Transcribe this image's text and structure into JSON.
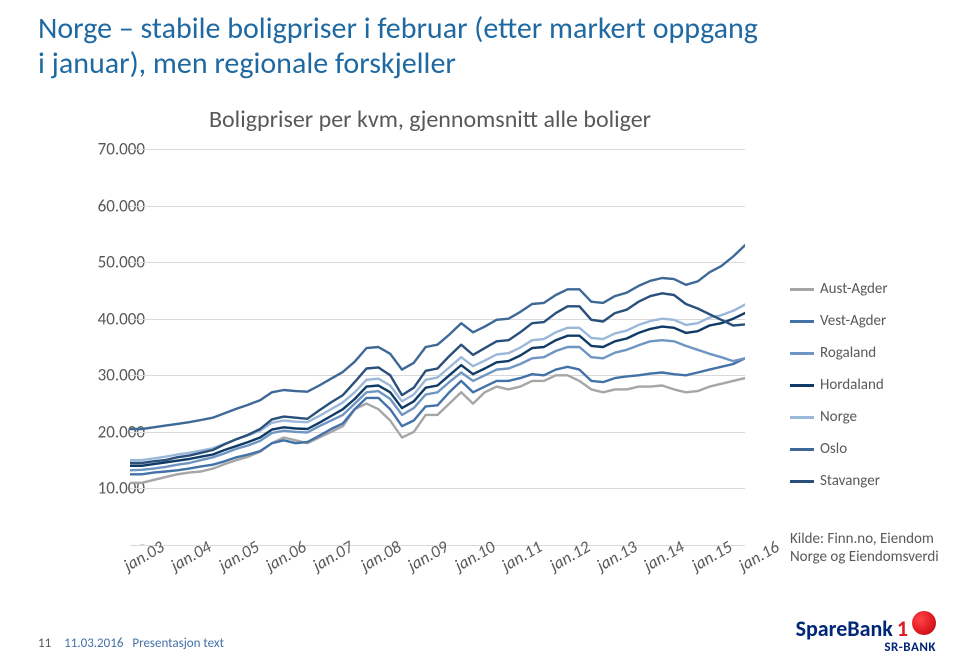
{
  "title": "Norge – stabile boligpriser i februar (etter markert oppgang i januar), men regionale forskjeller",
  "chart": {
    "title": "Boligpriser per kvm, gjennomsnitt alle boliger",
    "type": "line",
    "ylim": [
      0,
      70000
    ],
    "ytick_step": 10000,
    "y_tick_labels": [
      "-",
      "10.000",
      "20.000",
      "30.000",
      "40.000",
      "50.000",
      "60.000",
      "70.000"
    ],
    "x_labels": [
      "jan.03",
      "jan.04",
      "jan.05",
      "jan.06",
      "jan.07",
      "jan.08",
      "jan.09",
      "jan.10",
      "jan.11",
      "jan.12",
      "jan.13",
      "jan.14",
      "jan.15",
      "jan.16"
    ],
    "background_color": "#ffffff",
    "grid_color": "#d9d9d9",
    "axis_font_color": "#595959",
    "axis_font_size": 17,
    "line_width": 2.4,
    "series": [
      {
        "name": "Aust-Agder",
        "color": "#a6a6a6",
        "values_k": [
          11,
          11,
          11.5,
          12,
          12.5,
          12.8,
          13,
          13.5,
          14.3,
          15,
          15.6,
          16.5,
          18,
          19,
          18.5,
          18,
          19,
          20,
          21,
          24,
          25,
          24,
          22,
          19,
          20,
          23,
          23,
          25,
          27,
          25,
          27,
          28,
          27.5,
          28,
          29,
          29,
          30,
          30,
          29,
          27.5,
          27,
          27.5,
          27.5,
          28,
          28,
          28.2,
          27.5,
          27,
          27.2,
          28,
          28.5,
          29,
          29.5
        ]
      },
      {
        "name": "Vest-Agder",
        "color": "#4372a8",
        "values_k": [
          12.5,
          12.5,
          12.8,
          13,
          13.2,
          13.5,
          13.9,
          14.2,
          14.8,
          15.5,
          16,
          16.6,
          18,
          18.5,
          18,
          18.2,
          19.3,
          20.5,
          21.5,
          24,
          26,
          26,
          24,
          21,
          22,
          24.5,
          24.7,
          27,
          29,
          27,
          28,
          29,
          29,
          29.5,
          30.2,
          30,
          31,
          31.5,
          31,
          29,
          28.8,
          29.5,
          29.8,
          30,
          30.3,
          30.5,
          30.2,
          30,
          30.5,
          31,
          31.5,
          32,
          33
        ]
      },
      {
        "name": "Rogaland",
        "color": "#6f96c2",
        "values_k": [
          13.2,
          13.3,
          13.5,
          13.8,
          14.2,
          14.5,
          15,
          15.5,
          16.2,
          17,
          17.6,
          18.4,
          19.8,
          20.2,
          20,
          19.9,
          21,
          22,
          23,
          25,
          27,
          27.2,
          25.8,
          23,
          24.2,
          26.6,
          27,
          28.8,
          30.5,
          29,
          30,
          31,
          31.2,
          32,
          33,
          33.2,
          34.3,
          35,
          35,
          33.2,
          33,
          34,
          34.5,
          35.3,
          36,
          36.2,
          36,
          35.2,
          34.5,
          33.8,
          33.2,
          32.5,
          33
        ]
      },
      {
        "name": "Hordaland",
        "color": "#0f3b66",
        "values_k": [
          14,
          14,
          14.3,
          14.6,
          14.9,
          15.2,
          15.6,
          16,
          16.8,
          17.5,
          18.2,
          19,
          20.4,
          20.8,
          20.6,
          20.5,
          21.6,
          22.8,
          24,
          25.8,
          28,
          28.2,
          27,
          24.2,
          25.4,
          27.8,
          28.2,
          30,
          31.8,
          30.2,
          31.2,
          32.3,
          32.5,
          33.5,
          34.8,
          35,
          36.2,
          37,
          37,
          35.2,
          35,
          36,
          36.5,
          37.5,
          38.2,
          38.6,
          38.4,
          37.5,
          37.8,
          38.8,
          39.2,
          40,
          41
        ]
      },
      {
        "name": "Norge",
        "color": "#9bb8d9",
        "values_k": [
          15,
          15,
          15.3,
          15.6,
          16,
          16.3,
          16.7,
          17.1,
          17.9,
          18.7,
          19.4,
          20.2,
          21.6,
          22,
          21.8,
          21.7,
          22.8,
          24,
          25.2,
          27,
          29.2,
          29.4,
          28.2,
          25.4,
          26.6,
          29.2,
          29.6,
          31.4,
          33.2,
          31.6,
          32.6,
          33.7,
          33.9,
          34.9,
          36.2,
          36.4,
          37.6,
          38.4,
          38.4,
          36.6,
          36.4,
          37.4,
          37.9,
          38.9,
          39.6,
          40,
          39.8,
          38.9,
          39.2,
          40.2,
          40.6,
          41.4,
          42.5
        ]
      },
      {
        "name": "Oslo",
        "color": "#3e6896",
        "values_k": [
          20.5,
          20.5,
          20.8,
          21.1,
          21.4,
          21.7,
          22.1,
          22.5,
          23.3,
          24.1,
          24.8,
          25.6,
          27,
          27.4,
          27.2,
          27.1,
          28.2,
          29.4,
          30.6,
          32.4,
          34.8,
          35,
          33.8,
          31,
          32.2,
          35,
          35.4,
          37.2,
          39.2,
          37.6,
          38.6,
          39.8,
          40,
          41.2,
          42.6,
          42.8,
          44.2,
          45.2,
          45.2,
          43,
          42.8,
          44,
          44.6,
          45.8,
          46.7,
          47.2,
          47,
          46,
          46.6,
          48.2,
          49.3,
          51,
          53
        ]
      },
      {
        "name": "Stavanger",
        "color": "#2a4f7a",
        "values_k": [
          14.5,
          14.5,
          14.8,
          15,
          15.5,
          15.8,
          16.3,
          16.8,
          17.8,
          18.7,
          19.5,
          20.5,
          22.2,
          22.7,
          22.5,
          22.3,
          23.8,
          25.2,
          26.5,
          28.8,
          31.2,
          31.4,
          30,
          26.5,
          27.8,
          30.8,
          31.2,
          33.4,
          35.4,
          33.6,
          34.8,
          36,
          36.2,
          37.6,
          39.2,
          39.4,
          41,
          42.2,
          42.2,
          39.8,
          39.5,
          41,
          41.6,
          43,
          44,
          44.5,
          44.2,
          42.6,
          41.8,
          40.8,
          39.8,
          38.8,
          39
        ]
      }
    ]
  },
  "legend": {
    "position": "right"
  },
  "source": "Kilde: Finn.no, Eiendom Norge og Eiendomsverdi",
  "footer": {
    "page": "11",
    "date": "11.03.2016",
    "text": "Presentasjon text"
  },
  "logo": {
    "brand1": "SpareBank",
    "brand2": "1",
    "sub": "SR-BANK",
    "color1": "#002776",
    "color2": "#e11b22"
  }
}
